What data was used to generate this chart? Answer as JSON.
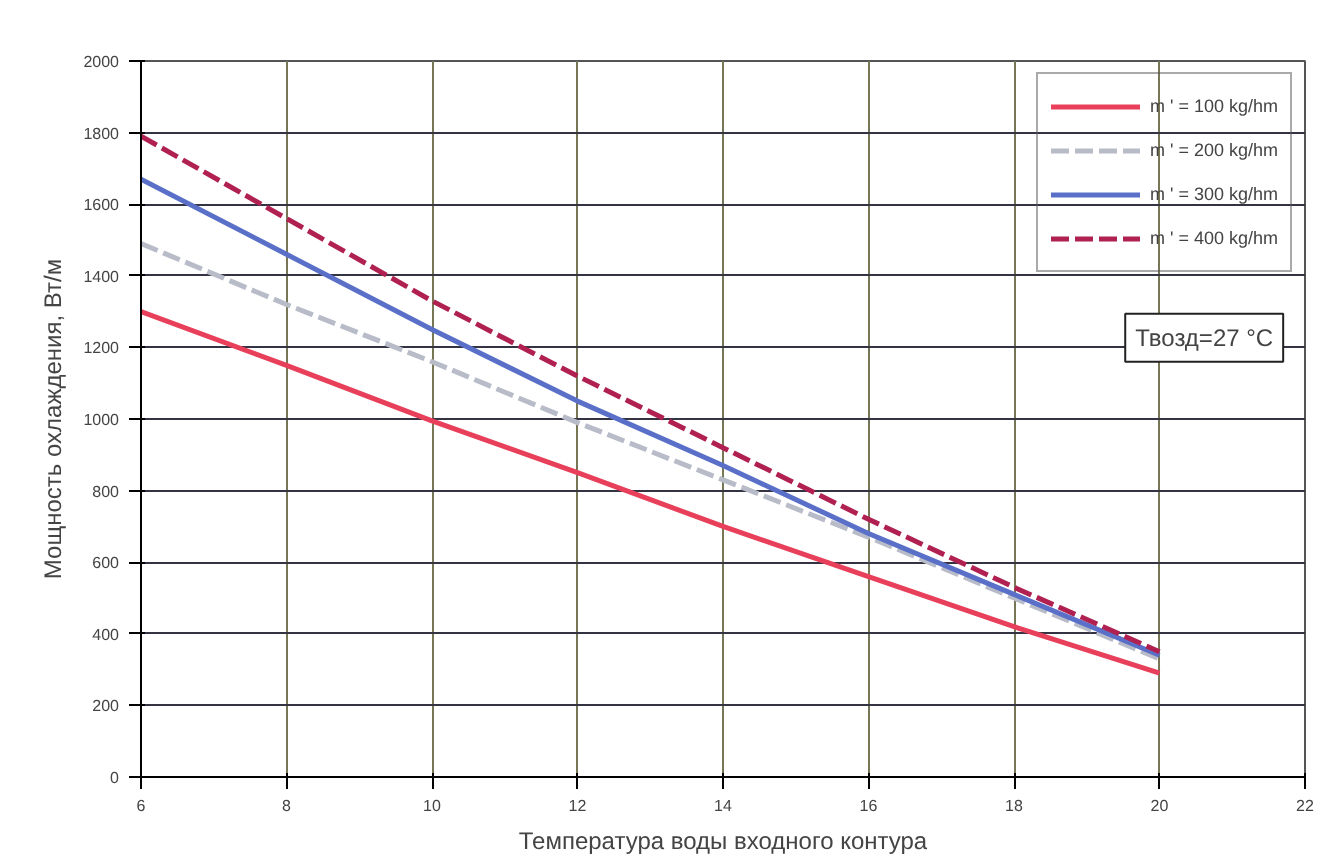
{
  "chart_data": {
    "type": "line",
    "xlabel": "Температура воды входного контура",
    "ylabel": "Мощность охлаждения, Вт/м",
    "x": [
      6,
      8,
      10,
      12,
      14,
      16,
      18,
      20
    ],
    "series": [
      {
        "name": "m ' = 100 kg/hm",
        "color": "#e8405a",
        "line_style": "solid",
        "values": [
          1300,
          1150,
          995,
          850,
          700,
          560,
          420,
          290
        ]
      },
      {
        "name": "m ' = 200 kg/hm",
        "color": "#b8bcc8",
        "line_style": "dashed",
        "values": [
          1490,
          1320,
          1160,
          990,
          830,
          670,
          500,
          330
        ]
      },
      {
        "name": "m ' = 300 kg/hm",
        "color": "#5a70c8",
        "line_style": "solid",
        "values": [
          1670,
          1460,
          1250,
          1050,
          870,
          680,
          510,
          340
        ]
      },
      {
        "name": "m ' = 400 kg/hm",
        "color": "#b02050",
        "line_style": "dashed",
        "values": [
          1790,
          1560,
          1330,
          1120,
          920,
          720,
          530,
          350
        ]
      }
    ],
    "xlim": [
      6,
      22
    ],
    "xticks": [
      6,
      8,
      10,
      12,
      14,
      16,
      18,
      20,
      22
    ],
    "ylim": [
      0,
      2000
    ],
    "yticks": [
      0,
      200,
      400,
      600,
      800,
      1000,
      1200,
      1400,
      1600,
      1800,
      2000
    ],
    "grid": true,
    "legend": "top right",
    "marker": "none",
    "annotations": [
      "Твозд=27 °C"
    ]
  }
}
